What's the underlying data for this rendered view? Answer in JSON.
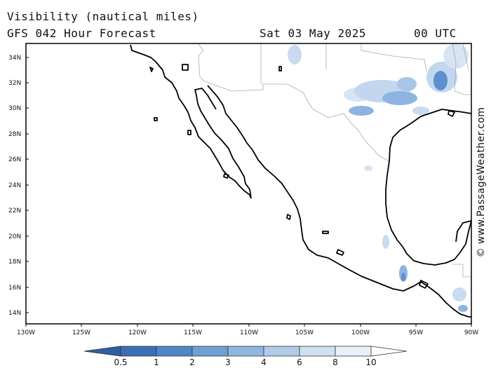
{
  "header": {
    "title": "Visibility (nautical miles)",
    "subtitle": "GFS 042 Hour Forecast",
    "date": "Sat 03 May 2025",
    "time": "00 UTC"
  },
  "credit": "© www.PassageWeather.com",
  "map": {
    "lat_labels": [
      "34N",
      "32N",
      "30N",
      "28N",
      "26N",
      "24N",
      "22N",
      "20N",
      "18N",
      "16N",
      "14N"
    ],
    "lon_labels": [
      "130W",
      "125W",
      "120W",
      "115W",
      "110W",
      "105W",
      "100W",
      "95W",
      "90W"
    ]
  },
  "legend": {
    "labels": [
      "0.5",
      "1",
      "2",
      "3",
      "4",
      "6",
      "8",
      "10"
    ],
    "colors": [
      "#3a6fb5",
      "#4f86c6",
      "#6f9fd3",
      "#90b6de",
      "#b1cbe8",
      "#d0e0f1",
      "#e8f0f9",
      "#f8fbfe"
    ]
  },
  "colors": {
    "land_border": "#000000",
    "state_border": "#aaaaaa",
    "fog_dark": "#4b7fc4",
    "fog_light": "#c9dbf0"
  }
}
